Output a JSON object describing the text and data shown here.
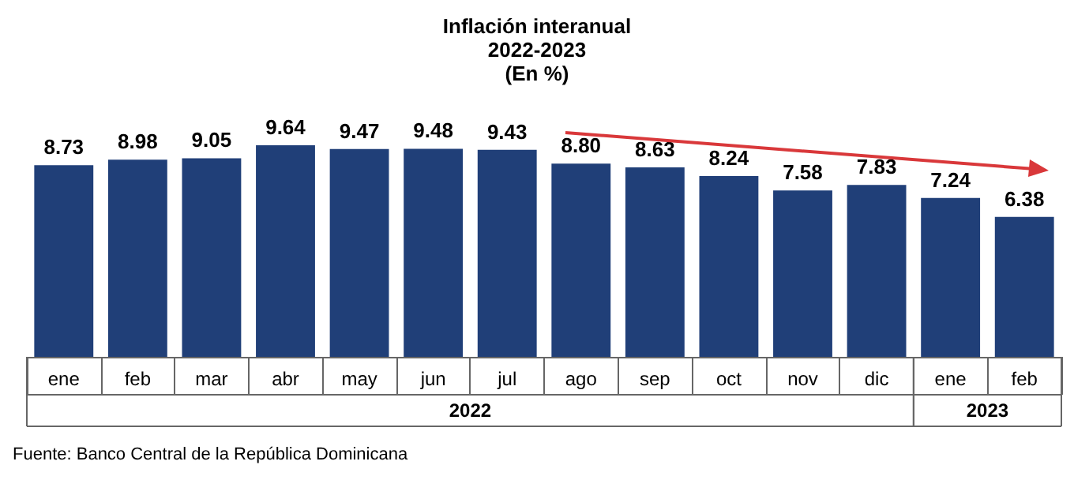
{
  "chart_data": {
    "type": "bar",
    "title": "Inflación interanual\n2022-2023\n(En %)",
    "categories": [
      "ene",
      "feb",
      "mar",
      "abr",
      "may",
      "jun",
      "jul",
      "ago",
      "sep",
      "oct",
      "nov",
      "dic",
      "ene",
      "feb"
    ],
    "values": [
      8.73,
      8.98,
      9.05,
      9.64,
      9.47,
      9.48,
      9.43,
      8.8,
      8.63,
      8.24,
      7.58,
      7.83,
      7.24,
      6.38
    ],
    "color": "#203f78",
    "value_labels": [
      "8.73",
      "8.98",
      "9.05",
      "9.64",
      "9.47",
      "9.48",
      "9.43",
      "8.80",
      "8.63",
      "8.24",
      "7.58",
      "7.83",
      "7.24",
      "6.38"
    ],
    "annotations": [
      "2022",
      "2023",
      "Fuente: Banco Central de la República Dominicana"
    ]
  }
}
